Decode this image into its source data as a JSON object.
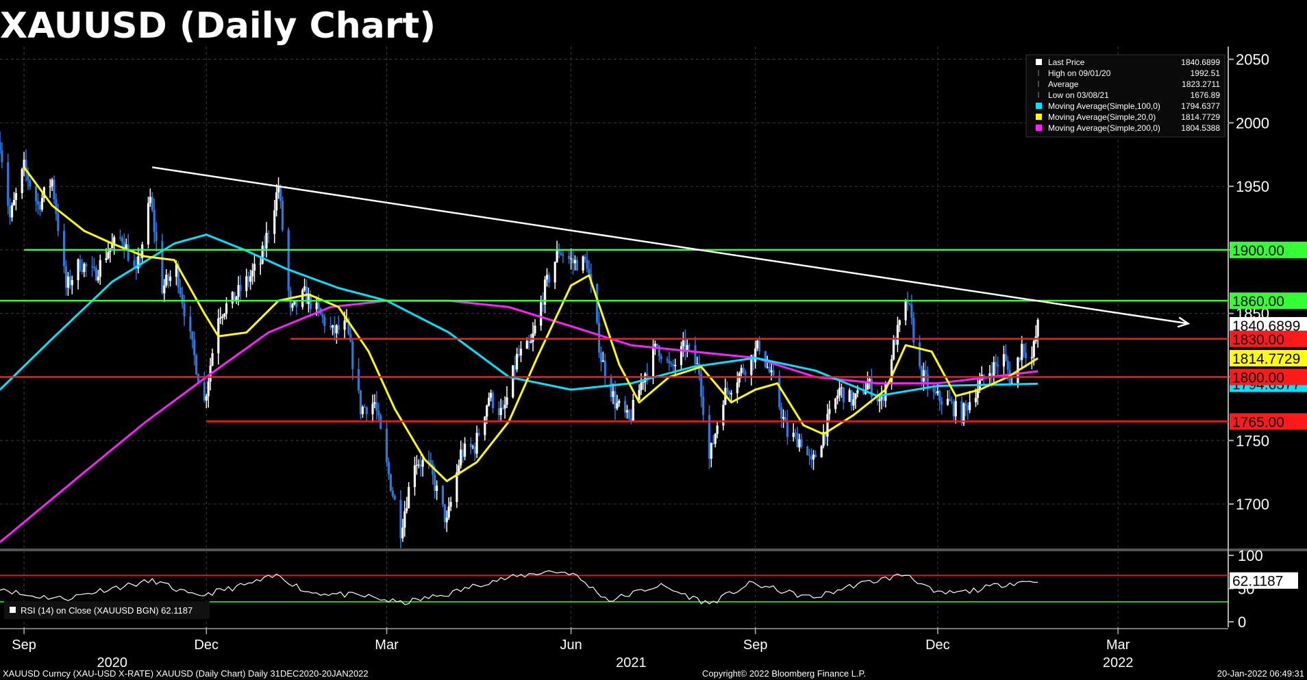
{
  "title": "XAUUSD (Daily Chart)",
  "footer": {
    "left": "XAUUSD Curncy (XAU-USD X-RATE) XAUUSD (Daily Chart)  Daily 31DEC2020-20JAN2022",
    "center": "Copyright© 2022 Bloomberg Finance L.P.",
    "right": "20-Jan-2022 06:49:31"
  },
  "colors": {
    "price_up": "#ffffff",
    "price_down": "#2a78e0",
    "ma100": "#00e5ff",
    "ma20": "#ffff00",
    "ma200": "#ff1fff",
    "support": "#ff1a1a",
    "resistance": "#33ff33",
    "trendline": "#ffffff",
    "grid": "#3a3a3a",
    "axis": "#b0b0b0"
  },
  "legend": [
    {
      "icon": "white",
      "label": "Last Price",
      "value": "1840.6899"
    },
    {
      "icon": "high",
      "label": "High on 09/01/20",
      "value": "1992.51"
    },
    {
      "icon": "avg",
      "label": "Average",
      "value": "1823.2711"
    },
    {
      "icon": "low",
      "label": "Low on 03/08/21",
      "value": "1676.89"
    },
    {
      "icon": "cyan",
      "label": "Moving Average(Simple,100,0)",
      "value": "1794.6377"
    },
    {
      "icon": "yellow",
      "label": "Moving Average(Simple,20,0)",
      "value": "1814.7729"
    },
    {
      "icon": "magenta",
      "label": "Moving Average(Simple,200,0)",
      "value": "1804.5388"
    }
  ],
  "rsi_legend": "RSI (14)  on Close (XAUUSD BGN) 62.1187",
  "chart_data": {
    "type": "candlestick",
    "y_ticks": [
      1700,
      1750,
      1800,
      1850,
      1900,
      1950,
      2000,
      2050
    ],
    "ylim": [
      1665,
      2060
    ],
    "xlim": [
      "2020-08-20",
      "2022-04-25"
    ],
    "x_month_ticks": [
      {
        "label": "Sep",
        "date": "2020-09-01"
      },
      {
        "label": "Dec",
        "date": "2020-12-01"
      },
      {
        "label": "Mar",
        "date": "2021-03-01"
      },
      {
        "label": "Jun",
        "date": "2021-06-01"
      },
      {
        "label": "Sep",
        "date": "2021-09-01"
      },
      {
        "label": "Dec",
        "date": "2021-12-01"
      },
      {
        "label": "Mar",
        "date": "2022-03-01"
      }
    ],
    "x_year_ticks": [
      {
        "label": "2020",
        "date": "2020-10-15"
      },
      {
        "label": "2021",
        "date": "2021-07-01"
      },
      {
        "label": "2022",
        "date": "2022-03-01"
      }
    ],
    "price_path": [
      [
        "2020-08-20",
        1985
      ],
      [
        "2020-08-25",
        1925
      ],
      [
        "2020-09-01",
        1965
      ],
      [
        "2020-09-08",
        1935
      ],
      [
        "2020-09-15",
        1955
      ],
      [
        "2020-09-22",
        1870
      ],
      [
        "2020-09-29",
        1890
      ],
      [
        "2020-10-06",
        1880
      ],
      [
        "2020-10-13",
        1900
      ],
      [
        "2020-10-20",
        1910
      ],
      [
        "2020-10-27",
        1880
      ],
      [
        "2020-11-03",
        1940
      ],
      [
        "2020-11-09",
        1870
      ],
      [
        "2020-11-16",
        1885
      ],
      [
        "2020-11-23",
        1830
      ],
      [
        "2020-11-30",
        1780
      ],
      [
        "2020-12-07",
        1850
      ],
      [
        "2020-12-14",
        1860
      ],
      [
        "2020-12-21",
        1875
      ],
      [
        "2020-12-28",
        1890
      ],
      [
        "2021-01-06",
        1950
      ],
      [
        "2021-01-12",
        1850
      ],
      [
        "2021-01-19",
        1865
      ],
      [
        "2021-01-26",
        1850
      ],
      [
        "2021-02-02",
        1835
      ],
      [
        "2021-02-09",
        1840
      ],
      [
        "2021-02-16",
        1775
      ],
      [
        "2021-02-23",
        1780
      ],
      [
        "2021-03-01",
        1730
      ],
      [
        "2021-03-08",
        1680
      ],
      [
        "2021-03-15",
        1735
      ],
      [
        "2021-03-22",
        1730
      ],
      [
        "2021-03-31",
        1685
      ],
      [
        "2021-04-07",
        1740
      ],
      [
        "2021-04-14",
        1745
      ],
      [
        "2021-04-21",
        1785
      ],
      [
        "2021-04-28",
        1770
      ],
      [
        "2021-05-05",
        1815
      ],
      [
        "2021-05-12",
        1825
      ],
      [
        "2021-05-19",
        1870
      ],
      [
        "2021-05-26",
        1900
      ],
      [
        "2021-06-02",
        1890
      ],
      [
        "2021-06-09",
        1890
      ],
      [
        "2021-06-16",
        1815
      ],
      [
        "2021-06-23",
        1780
      ],
      [
        "2021-06-30",
        1765
      ],
      [
        "2021-07-07",
        1800
      ],
      [
        "2021-07-14",
        1825
      ],
      [
        "2021-07-21",
        1805
      ],
      [
        "2021-07-28",
        1825
      ],
      [
        "2021-08-04",
        1805
      ],
      [
        "2021-08-09",
        1735
      ],
      [
        "2021-08-16",
        1785
      ],
      [
        "2021-08-23",
        1800
      ],
      [
        "2021-08-30",
        1815
      ],
      [
        "2021-09-03",
        1825
      ],
      [
        "2021-09-10",
        1795
      ],
      [
        "2021-09-17",
        1755
      ],
      [
        "2021-09-24",
        1750
      ],
      [
        "2021-09-29",
        1730
      ],
      [
        "2021-10-06",
        1760
      ],
      [
        "2021-10-13",
        1790
      ],
      [
        "2021-10-20",
        1780
      ],
      [
        "2021-10-27",
        1795
      ],
      [
        "2021-11-03",
        1780
      ],
      [
        "2021-11-09",
        1825
      ],
      [
        "2021-11-16",
        1860
      ],
      [
        "2021-11-22",
        1805
      ],
      [
        "2021-11-29",
        1785
      ],
      [
        "2021-12-06",
        1780
      ],
      [
        "2021-12-13",
        1770
      ],
      [
        "2021-12-20",
        1790
      ],
      [
        "2021-12-27",
        1805
      ],
      [
        "2022-01-03",
        1815
      ],
      [
        "2022-01-07",
        1795
      ],
      [
        "2022-01-12",
        1825
      ],
      [
        "2022-01-17",
        1815
      ],
      [
        "2022-01-20",
        1840
      ]
    ],
    "ma20": [
      [
        "2020-09-01",
        1965
      ],
      [
        "2020-09-15",
        1935
      ],
      [
        "2020-10-01",
        1915
      ],
      [
        "2020-10-15",
        1905
      ],
      [
        "2020-10-31",
        1895
      ],
      [
        "2020-11-15",
        1892
      ],
      [
        "2020-11-30",
        1850
      ],
      [
        "2020-12-07",
        1832
      ],
      [
        "2020-12-21",
        1835
      ],
      [
        "2021-01-06",
        1860
      ],
      [
        "2021-01-21",
        1865
      ],
      [
        "2021-02-05",
        1855
      ],
      [
        "2021-02-20",
        1820
      ],
      [
        "2021-03-05",
        1775
      ],
      [
        "2021-03-20",
        1735
      ],
      [
        "2021-03-31",
        1718
      ],
      [
        "2021-04-15",
        1733
      ],
      [
        "2021-05-01",
        1765
      ],
      [
        "2021-05-15",
        1815
      ],
      [
        "2021-06-01",
        1872
      ],
      [
        "2021-06-10",
        1880
      ],
      [
        "2021-06-25",
        1810
      ],
      [
        "2021-07-05",
        1780
      ],
      [
        "2021-07-20",
        1800
      ],
      [
        "2021-08-05",
        1808
      ],
      [
        "2021-08-20",
        1780
      ],
      [
        "2021-09-01",
        1790
      ],
      [
        "2021-09-12",
        1795
      ],
      [
        "2021-09-25",
        1762
      ],
      [
        "2021-10-05",
        1755
      ],
      [
        "2021-10-20",
        1770
      ],
      [
        "2021-11-05",
        1790
      ],
      [
        "2021-11-15",
        1825
      ],
      [
        "2021-11-28",
        1820
      ],
      [
        "2021-12-10",
        1785
      ],
      [
        "2021-12-22",
        1790
      ],
      [
        "2022-01-05",
        1800
      ],
      [
        "2022-01-20",
        1814.77
      ]
    ],
    "ma100": [
      [
        "2020-08-20",
        1790
      ],
      [
        "2020-09-15",
        1830
      ],
      [
        "2020-10-15",
        1875
      ],
      [
        "2020-11-15",
        1905
      ],
      [
        "2020-12-01",
        1912
      ],
      [
        "2020-12-20",
        1900
      ],
      [
        "2021-01-10",
        1885
      ],
      [
        "2021-02-05",
        1870
      ],
      [
        "2021-03-01",
        1860
      ],
      [
        "2021-04-01",
        1835
      ],
      [
        "2021-05-01",
        1800
      ],
      [
        "2021-06-01",
        1790
      ],
      [
        "2021-07-01",
        1795
      ],
      [
        "2021-08-01",
        1808
      ],
      [
        "2021-09-01",
        1815
      ],
      [
        "2021-10-01",
        1805
      ],
      [
        "2021-11-01",
        1785
      ],
      [
        "2021-12-01",
        1793
      ],
      [
        "2022-01-20",
        1794.64
      ]
    ],
    "ma200": [
      [
        "2020-08-20",
        1670
      ],
      [
        "2020-10-01",
        1725
      ],
      [
        "2020-11-01",
        1765
      ],
      [
        "2020-12-01",
        1800
      ],
      [
        "2021-01-01",
        1835
      ],
      [
        "2021-02-01",
        1855
      ],
      [
        "2021-03-01",
        1860
      ],
      [
        "2021-04-01",
        1860
      ],
      [
        "2021-05-01",
        1855
      ],
      [
        "2021-06-01",
        1840
      ],
      [
        "2021-07-01",
        1825
      ],
      [
        "2021-08-01",
        1820
      ],
      [
        "2021-09-01",
        1815
      ],
      [
        "2021-10-01",
        1800
      ],
      [
        "2021-11-01",
        1795
      ],
      [
        "2021-12-01",
        1795
      ],
      [
        "2022-01-20",
        1804.54
      ]
    ],
    "trendline": {
      "from": [
        "2020-11-04",
        1965
      ],
      "to": [
        "2022-04-05",
        1842
      ]
    },
    "horizontal_levels": [
      {
        "value": 1900,
        "label": "1900.00",
        "kind": "resistance",
        "from": "2020-09-01"
      },
      {
        "value": 1860,
        "label": "1860.00",
        "kind": "resistance",
        "from": "2020-08-20"
      },
      {
        "value": 1830,
        "label": "1830.00",
        "kind": "support",
        "from": "2021-01-12"
      },
      {
        "value": 1800,
        "label": "1800.00",
        "kind": "support",
        "from": "2020-08-20"
      },
      {
        "value": 1765,
        "label": "1765.00",
        "kind": "support",
        "from": "2020-12-01"
      }
    ],
    "price_labels": [
      {
        "value": 1840.6899,
        "label": "1840.6899",
        "kind": "last"
      },
      {
        "value": 1814.7729,
        "label": "1814.7729",
        "kind": "ma20"
      },
      {
        "value": 1794.6377,
        "label": "1794.6377",
        "kind": "ma100"
      }
    ],
    "rsi": {
      "y_ticks": [
        0,
        50,
        100
      ],
      "ylim": [
        0,
        100
      ],
      "levels": [
        70,
        30
      ],
      "last": 62.1187,
      "last_label": "62.1187",
      "path": [
        [
          "2020-08-20",
          52
        ],
        [
          "2020-09-01",
          40
        ],
        [
          "2020-09-22",
          35
        ],
        [
          "2020-10-10",
          48
        ],
        [
          "2020-11-05",
          62
        ],
        [
          "2020-11-25",
          38
        ],
        [
          "2020-12-20",
          55
        ],
        [
          "2021-01-06",
          70
        ],
        [
          "2021-01-20",
          45
        ],
        [
          "2021-02-20",
          38
        ],
        [
          "2021-03-08",
          28
        ],
        [
          "2021-04-01",
          42
        ],
        [
          "2021-04-20",
          60
        ],
        [
          "2021-05-20",
          76
        ],
        [
          "2021-06-01",
          74
        ],
        [
          "2021-06-20",
          32
        ],
        [
          "2021-07-15",
          55
        ],
        [
          "2021-08-09",
          27
        ],
        [
          "2021-08-30",
          58
        ],
        [
          "2021-09-20",
          42
        ],
        [
          "2021-09-30",
          36
        ],
        [
          "2021-10-20",
          55
        ],
        [
          "2021-11-16",
          72
        ],
        [
          "2021-11-30",
          42
        ],
        [
          "2021-12-15",
          45
        ],
        [
          "2022-01-05",
          58
        ],
        [
          "2022-01-12",
          60
        ],
        [
          "2022-01-20",
          62.12
        ]
      ]
    }
  }
}
